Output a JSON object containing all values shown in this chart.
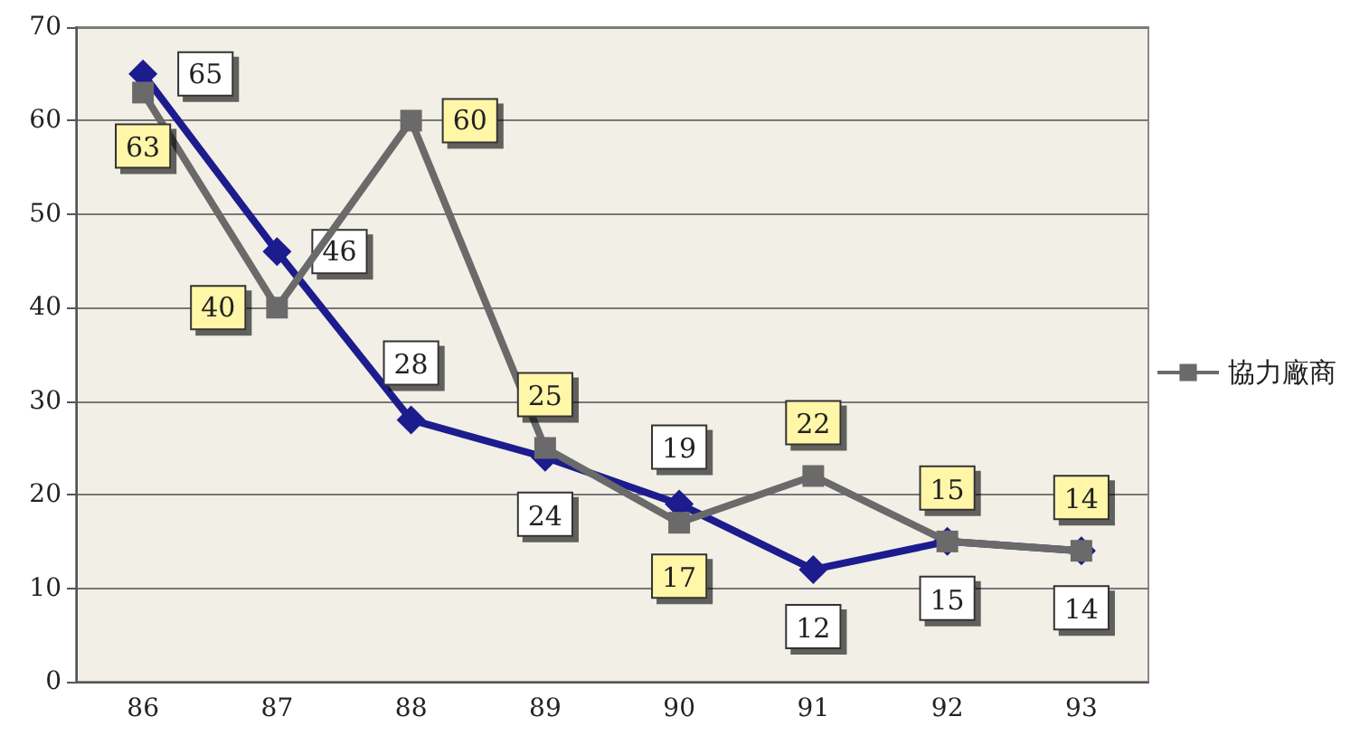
{
  "chart_data": {
    "type": "line",
    "categories": [
      "86",
      "87",
      "88",
      "89",
      "90",
      "91",
      "92",
      "93"
    ],
    "series": [
      {
        "color": "#1c1c8e",
        "marker": "diamond",
        "values": [
          65,
          46,
          28,
          24,
          19,
          12,
          15,
          14
        ]
      },
      {
        "name": "協力廠商",
        "color": "#6a6a6a",
        "marker": "square",
        "values": [
          63,
          40,
          60,
          25,
          17,
          22,
          15,
          14
        ]
      }
    ],
    "ylim": [
      0,
      70
    ],
    "yticks": [
      0,
      10,
      20,
      30,
      40,
      50,
      60,
      70
    ],
    "grid": "y",
    "legend": "right",
    "data_labels": true
  }
}
